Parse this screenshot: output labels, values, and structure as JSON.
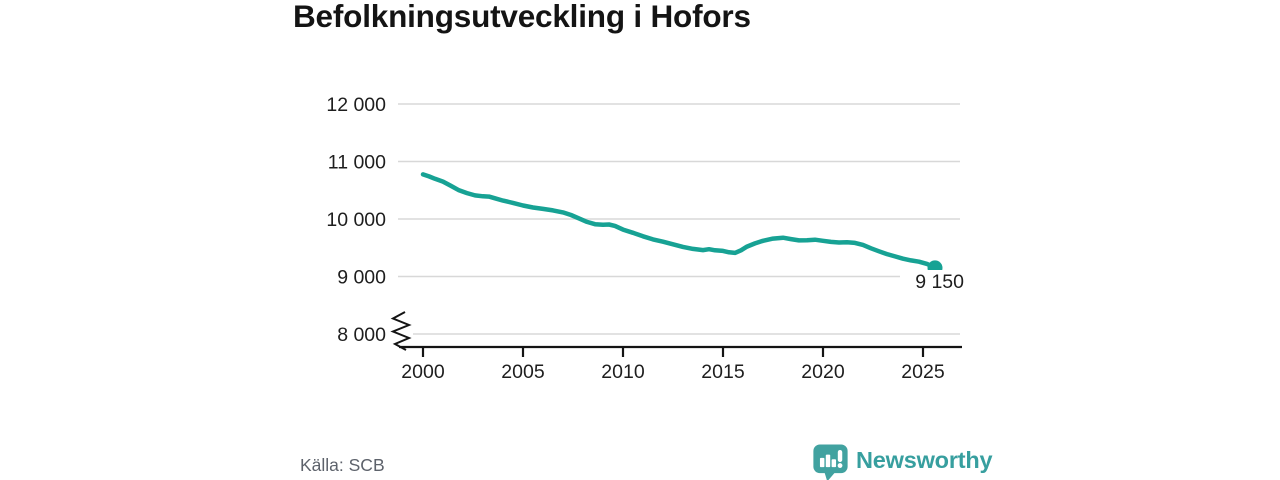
{
  "title": "Befolkningsutveckling i Hofors",
  "source": "Källa: SCB",
  "branding": {
    "name": "Newsworthy"
  },
  "colors": {
    "line": "#17a294",
    "grid": "#d8d8d8",
    "axis": "#141414",
    "label": "#1e1e1e",
    "muted": "#5d626b",
    "brand": "#379f9f",
    "background": "#ffffff"
  },
  "chart_data": {
    "type": "line",
    "title": "Befolkningsutveckling i Hofors",
    "xlabel": "",
    "ylabel": "",
    "series_name": "Befolkning i Hofors",
    "x": [
      2000.0,
      2000.3,
      2000.6,
      2001.0,
      2001.4,
      2001.8,
      2002.2,
      2002.6,
      2003.0,
      2003.3,
      2003.6,
      2004.0,
      2004.5,
      2005.0,
      2005.5,
      2006.0,
      2006.5,
      2007.0,
      2007.4,
      2007.8,
      2008.2,
      2008.6,
      2009.0,
      2009.3,
      2009.6,
      2010.0,
      2010.5,
      2011.0,
      2011.5,
      2012.0,
      2012.5,
      2013.0,
      2013.5,
      2014.0,
      2014.3,
      2014.6,
      2015.0,
      2015.3,
      2015.6,
      2015.9,
      2016.2,
      2016.6,
      2017.0,
      2017.5,
      2018.0,
      2018.4,
      2018.8,
      2019.2,
      2019.6,
      2020.0,
      2020.4,
      2020.8,
      2021.2,
      2021.6,
      2022.0,
      2022.4,
      2022.8,
      2023.2,
      2023.6,
      2024.0,
      2024.4,
      2024.8,
      2025.2,
      2025.6
    ],
    "y": [
      10775,
      10740,
      10700,
      10650,
      10575,
      10500,
      10450,
      10410,
      10395,
      10390,
      10360,
      10320,
      10280,
      10235,
      10200,
      10175,
      10150,
      10115,
      10070,
      10010,
      9950,
      9910,
      9900,
      9905,
      9880,
      9815,
      9760,
      9700,
      9645,
      9605,
      9560,
      9515,
      9480,
      9460,
      9475,
      9455,
      9445,
      9420,
      9410,
      9455,
      9520,
      9575,
      9620,
      9660,
      9675,
      9650,
      9628,
      9632,
      9640,
      9620,
      9602,
      9592,
      9596,
      9585,
      9550,
      9490,
      9438,
      9390,
      9350,
      9310,
      9280,
      9258,
      9220,
      9150
    ],
    "xticks": [
      2000,
      2005,
      2010,
      2015,
      2020,
      2025
    ],
    "xtick_labels": [
      "2000",
      "2005",
      "2010",
      "2015",
      "2020",
      "2025"
    ],
    "yticks": [
      8000,
      9000,
      10000,
      11000,
      12000
    ],
    "ytick_labels": [
      "8 000",
      "9 000",
      "10 000",
      "11 000",
      "12 000"
    ],
    "ylim": [
      8000,
      12000
    ],
    "xlim": [
      2000,
      2027
    ],
    "grid": "horizontal-only",
    "legend": "none",
    "axis_break_at_y": 8000,
    "end_point": {
      "x": 2025.6,
      "y": 9150,
      "label": "9 150"
    }
  }
}
